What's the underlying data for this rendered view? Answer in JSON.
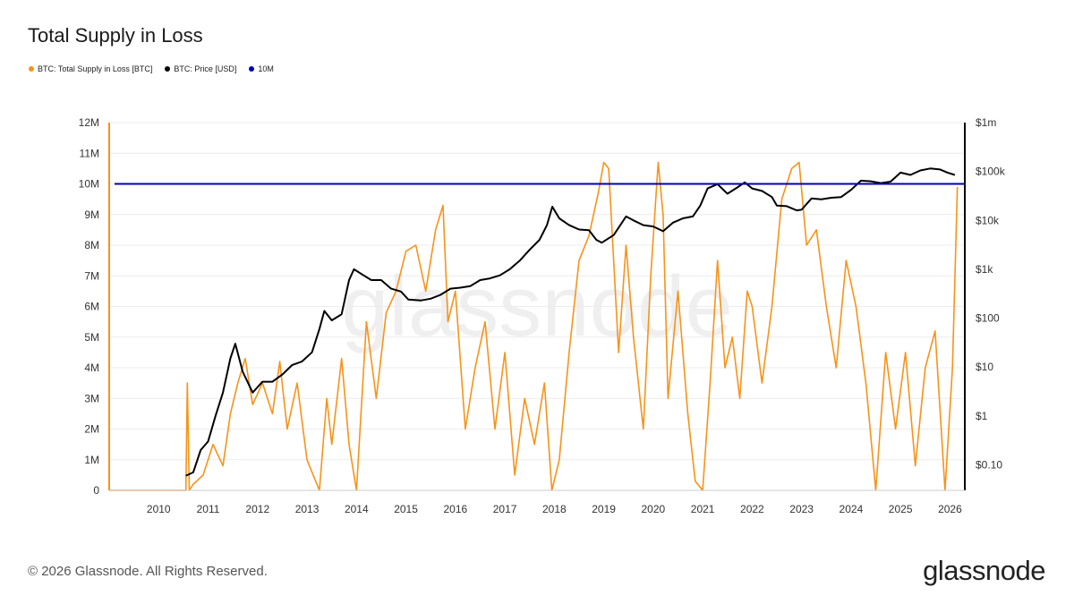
{
  "footer": {
    "copyright": "© 2026 Glassnode. All Rights Reserved.",
    "brand": "glassnode"
  },
  "chart_data": {
    "type": "line",
    "title": "Total Supply in Loss",
    "watermark": "glassnode",
    "grid": true,
    "legend_position": "top-left",
    "legend": [
      {
        "name": "BTC: Total Supply in Loss [BTC]",
        "color": "#f7931a"
      },
      {
        "name": "BTC: Price [USD]",
        "color": "#000000"
      },
      {
        "name": "10M",
        "color": "#0000b3"
      }
    ],
    "x_ticks": [
      "2010",
      "2011",
      "2012",
      "2013",
      "2014",
      "2015",
      "2016",
      "2017",
      "2018",
      "2019",
      "2020",
      "2021",
      "2022",
      "2023",
      "2024",
      "2025",
      "2026"
    ],
    "x_range": [
      2009.0,
      2026.3
    ],
    "y_left": {
      "label": "",
      "range": [
        0,
        12000000
      ],
      "ticks": [
        {
          "v": 0,
          "t": "0"
        },
        {
          "v": 1000000,
          "t": "1M"
        },
        {
          "v": 2000000,
          "t": "2M"
        },
        {
          "v": 3000000,
          "t": "3M"
        },
        {
          "v": 4000000,
          "t": "4M"
        },
        {
          "v": 5000000,
          "t": "5M"
        },
        {
          "v": 6000000,
          "t": "6M"
        },
        {
          "v": 7000000,
          "t": "7M"
        },
        {
          "v": 8000000,
          "t": "8M"
        },
        {
          "v": 9000000,
          "t": "9M"
        },
        {
          "v": 10000000,
          "t": "10M"
        },
        {
          "v": 11000000,
          "t": "11M"
        },
        {
          "v": 12000000,
          "t": "12M"
        }
      ]
    },
    "y_right": {
      "label": "",
      "scale": "log",
      "range": [
        0.03,
        1000000
      ],
      "ticks": [
        {
          "v": 0.1,
          "t": "$0.10"
        },
        {
          "v": 1,
          "t": "$1"
        },
        {
          "v": 10,
          "t": "$10"
        },
        {
          "v": 100,
          "t": "$100"
        },
        {
          "v": 1000,
          "t": "$1k"
        },
        {
          "v": 10000,
          "t": "$10k"
        },
        {
          "v": 100000,
          "t": "$100k"
        },
        {
          "v": 1000000,
          "t": "$1m"
        }
      ]
    },
    "reference_line": {
      "name": "10M",
      "value": 10000000,
      "color": "#0000b3"
    },
    "series": [
      {
        "name": "BTC: Total Supply in Loss [BTC]",
        "color": "#f7931a",
        "axis": "left",
        "x": [
          2009.0,
          2010.55,
          2010.58,
          2010.62,
          2010.7,
          2010.9,
          2011.1,
          2011.3,
          2011.45,
          2011.6,
          2011.75,
          2011.9,
          2012.1,
          2012.3,
          2012.45,
          2012.6,
          2012.8,
          2013.0,
          2013.15,
          2013.25,
          2013.4,
          2013.5,
          2013.7,
          2013.85,
          2014.0,
          2014.2,
          2014.4,
          2014.6,
          2014.8,
          2015.0,
          2015.2,
          2015.4,
          2015.6,
          2015.75,
          2015.85,
          2016.0,
          2016.2,
          2016.4,
          2016.6,
          2016.8,
          2017.0,
          2017.2,
          2017.4,
          2017.6,
          2017.8,
          2017.95,
          2018.1,
          2018.3,
          2018.5,
          2018.7,
          2018.9,
          2019.0,
          2019.1,
          2019.3,
          2019.45,
          2019.6,
          2019.8,
          2019.95,
          2020.1,
          2020.2,
          2020.3,
          2020.5,
          2020.7,
          2020.85,
          2021.0,
          2021.15,
          2021.3,
          2021.45,
          2021.6,
          2021.75,
          2021.9,
          2022.0,
          2022.2,
          2022.4,
          2022.6,
          2022.8,
          2022.95,
          2023.1,
          2023.3,
          2023.5,
          2023.7,
          2023.9,
          2024.1,
          2024.3,
          2024.5,
          2024.7,
          2024.9,
          2025.1,
          2025.3,
          2025.5,
          2025.7,
          2025.9,
          2026.05,
          2026.15
        ],
        "values": [
          0,
          0,
          3500000,
          0,
          200000,
          500000,
          1500000,
          800000,
          2500000,
          3500000,
          4300000,
          2800000,
          3500000,
          2500000,
          4200000,
          2000000,
          3500000,
          1000000,
          400000,
          0,
          3000000,
          1500000,
          4300000,
          1500000,
          0,
          5500000,
          3000000,
          5800000,
          6500000,
          7800000,
          8000000,
          6500000,
          8500000,
          9300000,
          5500000,
          6500000,
          2000000,
          4000000,
          5500000,
          2000000,
          4500000,
          500000,
          3000000,
          1500000,
          3500000,
          0,
          1000000,
          4500000,
          7500000,
          8300000,
          9800000,
          10700000,
          10500000,
          4500000,
          8000000,
          5000000,
          2000000,
          7000000,
          10700000,
          9000000,
          3000000,
          6500000,
          2500000,
          300000,
          0,
          3500000,
          7500000,
          4000000,
          5000000,
          3000000,
          6500000,
          6000000,
          3500000,
          6000000,
          9500000,
          10500000,
          10700000,
          8000000,
          8500000,
          6000000,
          4000000,
          7500000,
          6000000,
          3500000,
          0,
          4500000,
          2000000,
          4500000,
          800000,
          4000000,
          5200000,
          0,
          4000000,
          9900000
        ]
      },
      {
        "name": "BTC: Price [USD]",
        "color": "#000000",
        "axis": "right",
        "x": [
          2010.55,
          2010.7,
          2010.85,
          2011.0,
          2011.15,
          2011.3,
          2011.45,
          2011.55,
          2011.7,
          2011.9,
          2012.1,
          2012.3,
          2012.5,
          2012.7,
          2012.9,
          2013.1,
          2013.25,
          2013.35,
          2013.5,
          2013.7,
          2013.85,
          2013.95,
          2014.1,
          2014.3,
          2014.5,
          2014.7,
          2014.9,
          2015.05,
          2015.3,
          2015.5,
          2015.7,
          2015.9,
          2016.1,
          2016.3,
          2016.5,
          2016.7,
          2016.9,
          2017.1,
          2017.3,
          2017.5,
          2017.7,
          2017.85,
          2017.96,
          2018.1,
          2018.3,
          2018.5,
          2018.7,
          2018.85,
          2018.96,
          2019.2,
          2019.45,
          2019.6,
          2019.8,
          2020.0,
          2020.2,
          2020.4,
          2020.6,
          2020.8,
          2020.95,
          2021.1,
          2021.3,
          2021.5,
          2021.7,
          2021.85,
          2022.0,
          2022.2,
          2022.4,
          2022.5,
          2022.7,
          2022.9,
          2023.0,
          2023.2,
          2023.4,
          2023.6,
          2023.8,
          2024.0,
          2024.2,
          2024.4,
          2024.6,
          2024.8,
          2025.0,
          2025.2,
          2025.4,
          2025.6,
          2025.8,
          2025.95,
          2026.1
        ],
        "values": [
          0.06,
          0.07,
          0.2,
          0.3,
          1,
          3,
          15,
          30,
          8,
          3,
          5,
          5,
          7,
          11,
          13,
          20,
          60,
          140,
          90,
          120,
          600,
          1000,
          800,
          600,
          600,
          400,
          350,
          240,
          230,
          250,
          300,
          400,
          420,
          450,
          600,
          650,
          750,
          1000,
          1500,
          2500,
          4000,
          8000,
          19000,
          11000,
          8000,
          6500,
          6300,
          4000,
          3500,
          5000,
          12000,
          10000,
          8000,
          7500,
          6000,
          9000,
          11000,
          12000,
          20000,
          45000,
          55000,
          35000,
          47000,
          60000,
          45000,
          40000,
          30000,
          20000,
          19500,
          16000,
          16500,
          28000,
          27000,
          29000,
          30000,
          42000,
          65000,
          63000,
          58000,
          62000,
          95000,
          85000,
          105000,
          115000,
          110000,
          95000,
          85000
        ]
      }
    ]
  }
}
